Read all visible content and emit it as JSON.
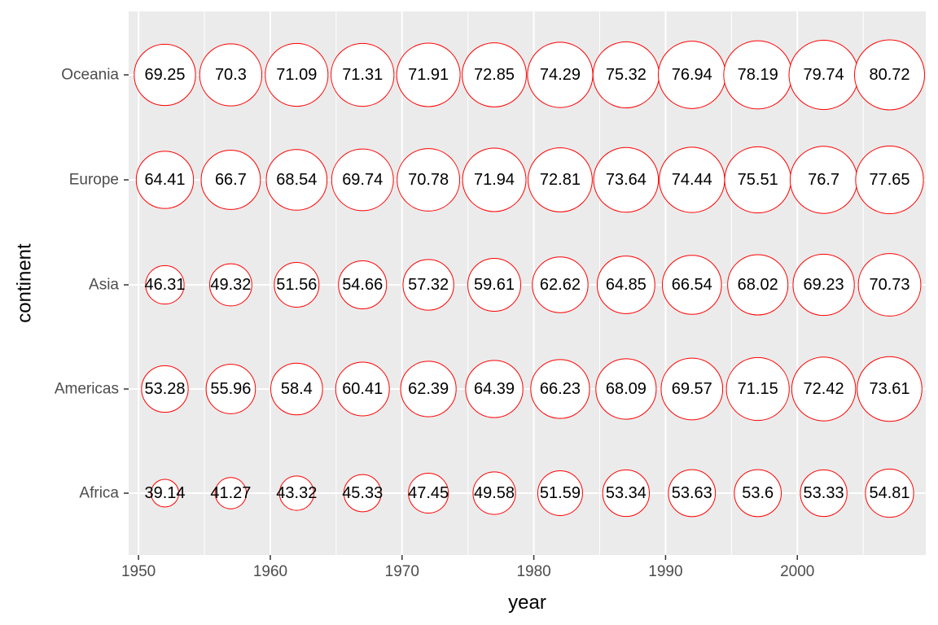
{
  "chart_data": {
    "type": "scatter",
    "xlabel": "year",
    "ylabel": "continent",
    "x": [
      1952,
      1957,
      1962,
      1967,
      1972,
      1977,
      1982,
      1987,
      1992,
      1997,
      2002,
      2007
    ],
    "xlim": [
      1949.25,
      2009.75
    ],
    "xticks": [
      "1950",
      "1960",
      "1970",
      "1980",
      "1990",
      "2000"
    ],
    "categories": [
      "Africa",
      "Americas",
      "Asia",
      "Europe",
      "Oceania"
    ],
    "series": [
      {
        "continent": "Africa",
        "values": [
          39.14,
          41.27,
          43.32,
          45.33,
          47.45,
          49.58,
          51.59,
          53.34,
          53.63,
          53.6,
          53.33,
          54.81
        ]
      },
      {
        "continent": "Americas",
        "values": [
          53.28,
          55.96,
          58.4,
          60.41,
          62.39,
          64.39,
          66.23,
          68.09,
          69.57,
          71.15,
          72.42,
          73.61
        ]
      },
      {
        "continent": "Asia",
        "values": [
          46.31,
          49.32,
          51.56,
          54.66,
          57.32,
          59.61,
          62.62,
          64.85,
          66.54,
          68.02,
          69.23,
          70.73
        ]
      },
      {
        "continent": "Europe",
        "values": [
          64.41,
          66.7,
          68.54,
          69.74,
          70.78,
          71.94,
          72.81,
          73.64,
          74.44,
          75.51,
          76.7,
          77.65
        ]
      },
      {
        "continent": "Oceania",
        "values": [
          69.25,
          70.3,
          71.09,
          71.31,
          71.91,
          72.85,
          74.29,
          75.32,
          76.94,
          78.19,
          79.74,
          80.72
        ]
      }
    ],
    "grid": true,
    "legend": "none",
    "colors": {
      "panel": "#ebebeb",
      "grid": "#ffffff",
      "circle_stroke": "#ff0000",
      "circle_fill": "#ffffff",
      "text": "#000000"
    }
  }
}
